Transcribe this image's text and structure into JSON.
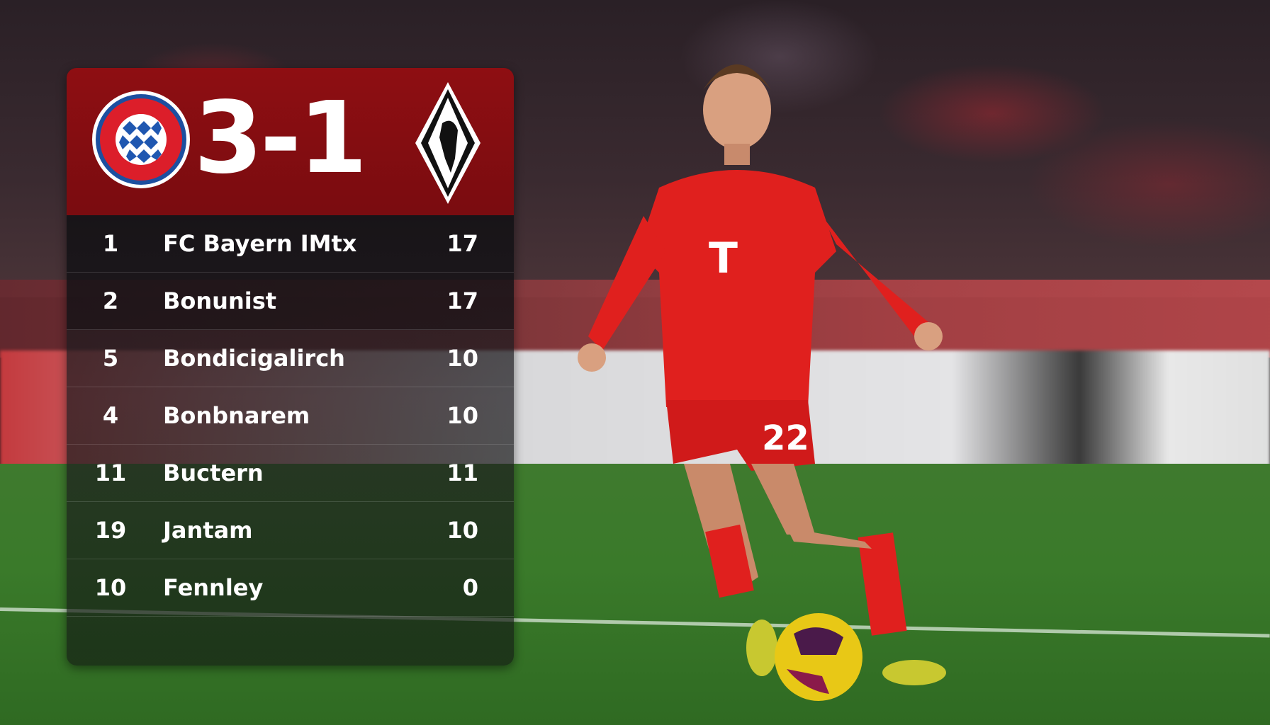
{
  "scoreboard": {
    "home_crest": "FC Bayern München crest",
    "away_crest": "Borussia Mönchengladbach crest",
    "score": "3-1",
    "colors": {
      "header": "#8e0e12",
      "text": "#ffffff"
    }
  },
  "standings": [
    {
      "pos": "1",
      "team": "FC Bayern IMtx",
      "pts": "17"
    },
    {
      "pos": "2",
      "team": "Bonunist",
      "pts": "17"
    },
    {
      "pos": "5",
      "team": "Bondicigalirch",
      "pts": "10"
    },
    {
      "pos": "4",
      "team": "Bonbnarem",
      "pts": "10"
    },
    {
      "pos": "11",
      "team": "Buctern",
      "pts": "11"
    },
    {
      "pos": "19",
      "team": "Jantam",
      "pts": "10"
    },
    {
      "pos": "10",
      "team": "Fennley",
      "pts": "0"
    }
  ],
  "player": {
    "number": "22",
    "kit_color": "#e0201e"
  }
}
